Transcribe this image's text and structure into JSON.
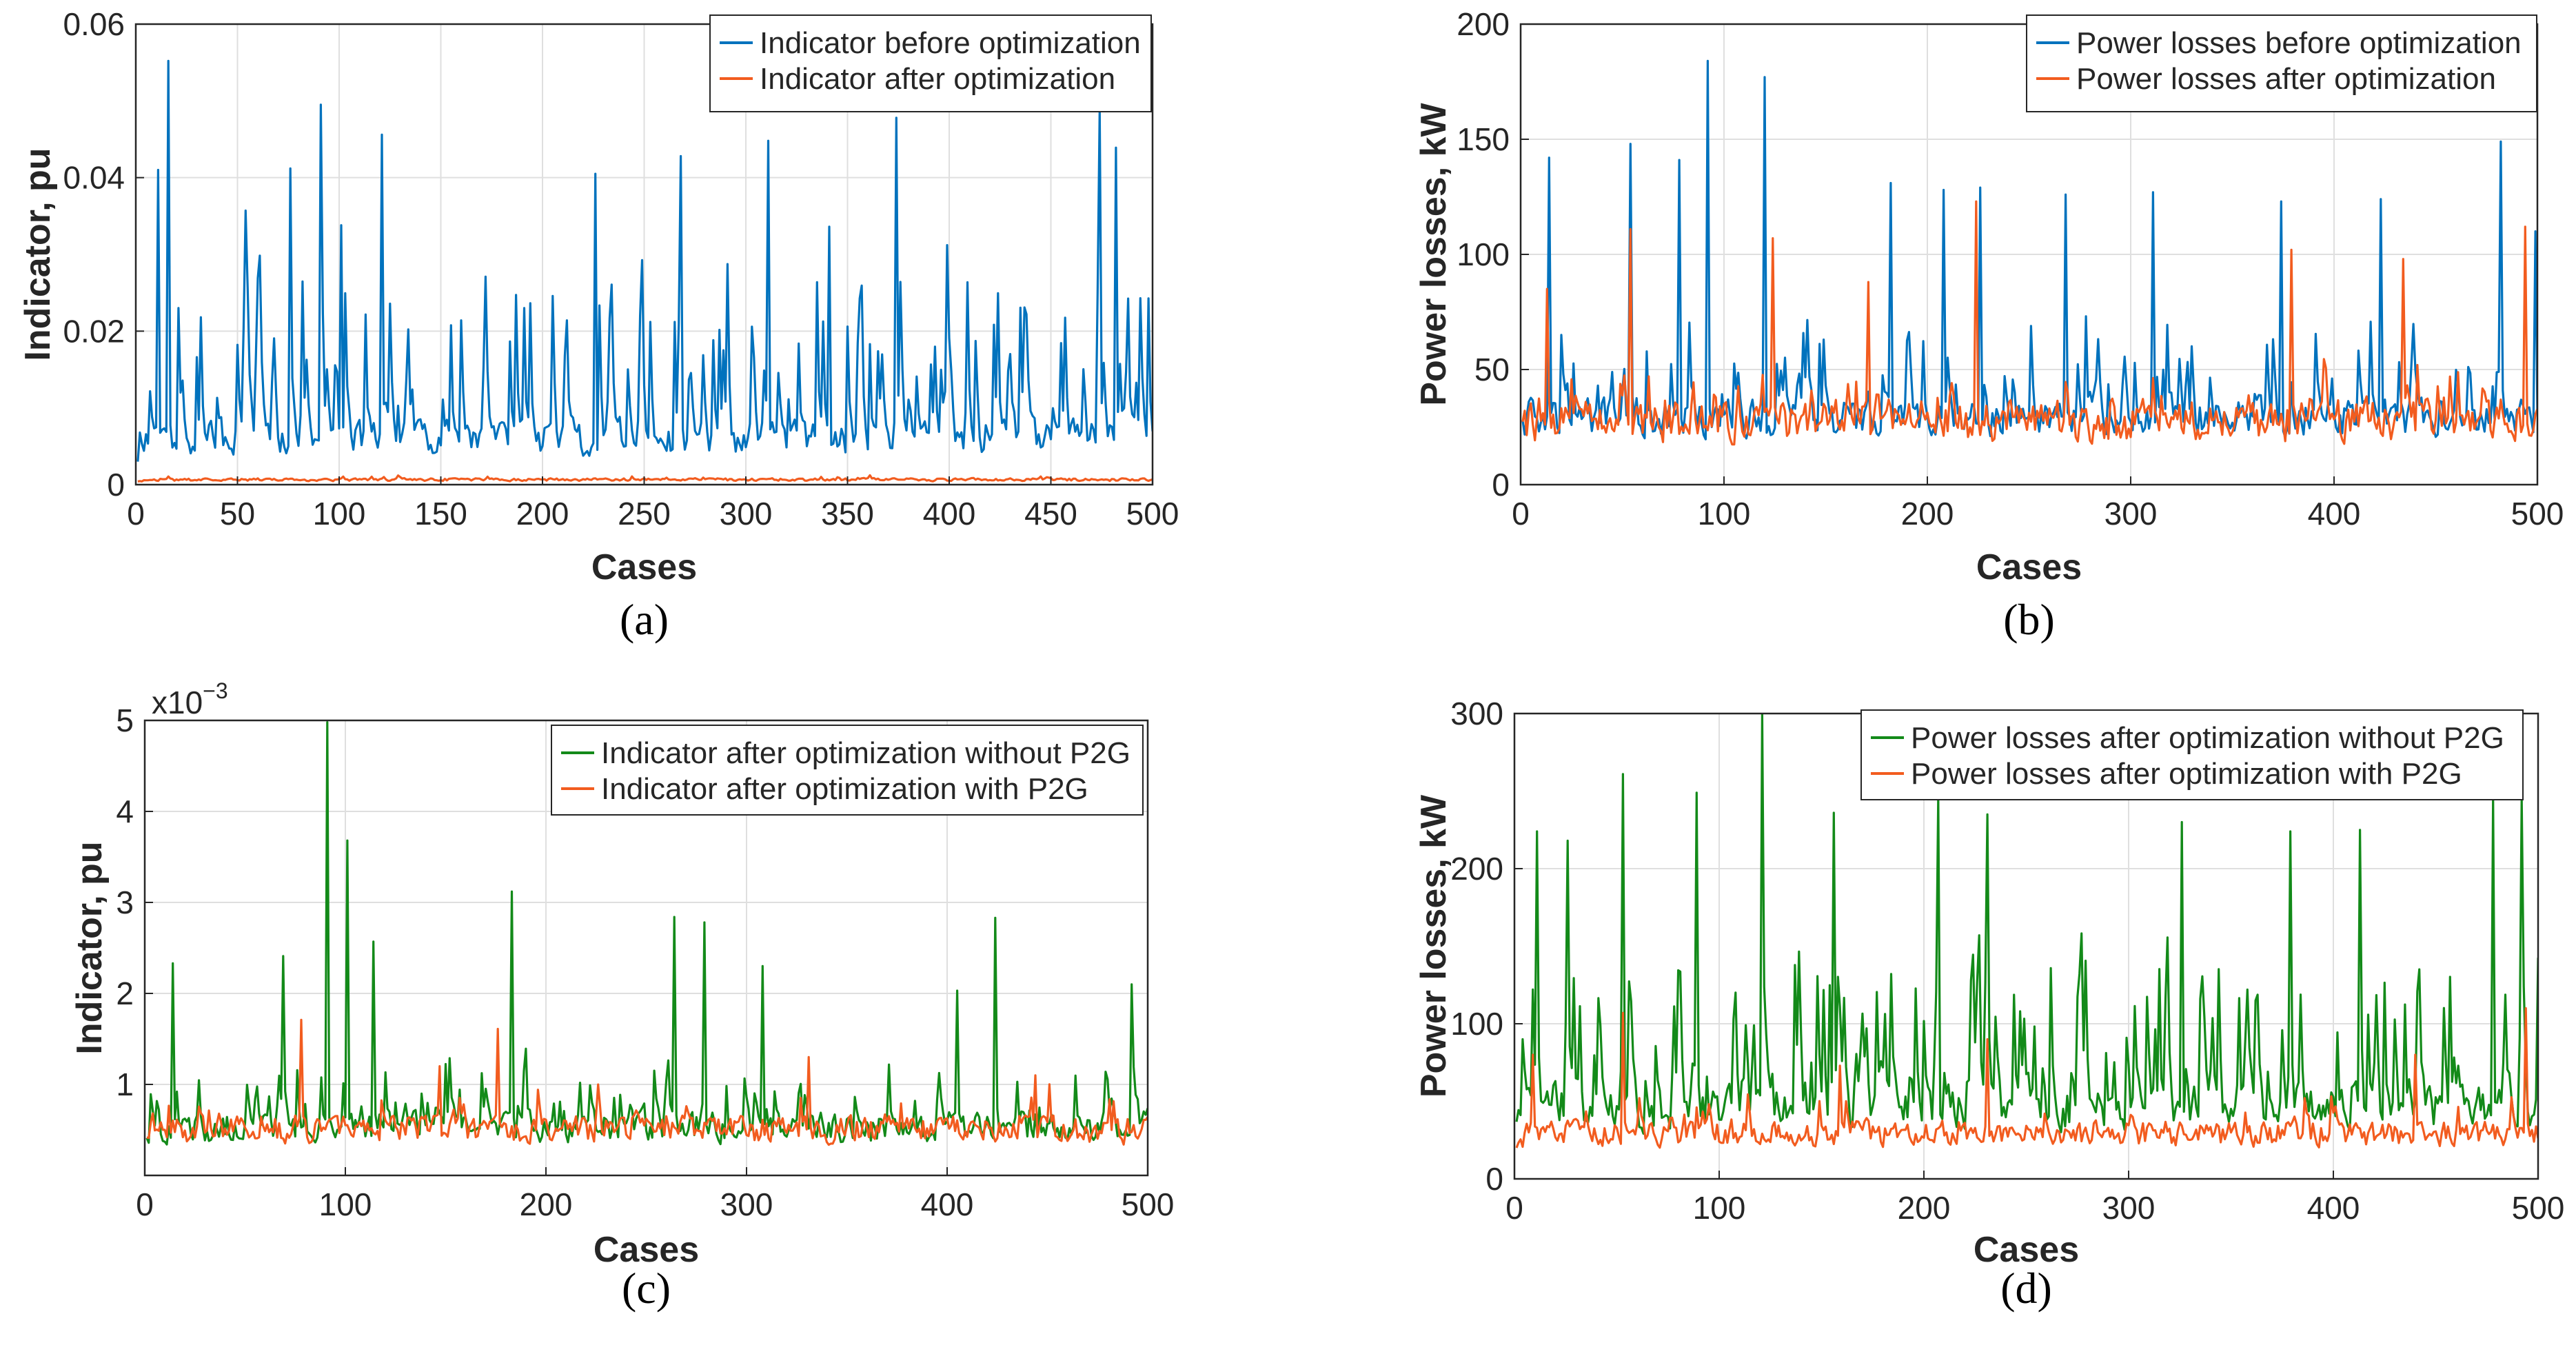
{
  "colors": {
    "blue": "#0072BD",
    "orange": "#F25C1F",
    "green": "#138A19"
  },
  "chart_data": [
    {
      "type": "line",
      "panel_label": "(a)",
      "xlabel": "Cases",
      "ylabel": "Indicator, pu",
      "xlim": [
        0,
        500
      ],
      "ylim": [
        0,
        0.06
      ],
      "xticks": [
        0,
        50,
        100,
        150,
        200,
        250,
        300,
        350,
        400,
        450,
        500
      ],
      "xtick_labels": [
        "0",
        "50",
        "100",
        "150",
        "200",
        "250",
        "300",
        "350",
        "400",
        "450",
        "500"
      ],
      "yticks": [
        0,
        0.02,
        0.04,
        0.06
      ],
      "ytick_labels": [
        "0",
        "0.02",
        "0.04",
        "0.06"
      ],
      "grid": true,
      "legend": "top-right",
      "series": [
        {
          "name": "Indicator before optimization",
          "color": "#0072BD",
          "seed": 11,
          "n": 500,
          "base": 0.003,
          "noise": 0.006,
          "spike_prob": 0.22,
          "spike_max": 0.03,
          "floor": 0.0005,
          "peaks": [
            [
              15,
              0.0552
            ],
            [
              10,
              0.041
            ],
            [
              90,
              0.0495
            ],
            [
              120,
              0.0456
            ],
            [
              53,
              0.0357
            ],
            [
              75,
              0.0412
            ],
            [
              100,
              0.0338
            ],
            [
              225,
              0.0405
            ],
            [
              267,
              0.0428
            ],
            [
              310,
              0.0448
            ],
            [
              373,
              0.0478
            ],
            [
              473,
              0.0488
            ],
            [
              481,
              0.0439
            ],
            [
              340,
              0.0336
            ],
            [
              398,
              0.0312
            ]
          ]
        },
        {
          "name": "Indicator after optimization",
          "color": "#F25C1F",
          "seed": 12,
          "n": 500,
          "base": 0.0004,
          "noise": 0.0005,
          "spike_prob": 0.05,
          "spike_max": 0.0008,
          "floor": 0.0001,
          "peaks": []
        }
      ]
    },
    {
      "type": "line",
      "panel_label": "(b)",
      "xlabel": "Cases",
      "ylabel": "Power losses, kW",
      "xlim": [
        0,
        500
      ],
      "ylim": [
        0,
        200
      ],
      "xticks": [
        0,
        100,
        200,
        300,
        400,
        500
      ],
      "xtick_labels": [
        "0",
        "100",
        "200",
        "300",
        "400",
        "500"
      ],
      "yticks": [
        0,
        50,
        100,
        150,
        200
      ],
      "ytick_labels": [
        "0",
        "50",
        "100",
        "150",
        "200"
      ],
      "grid": true,
      "legend": "top-right",
      "series": [
        {
          "name": "Power losses before optimization",
          "color": "#0072BD",
          "seed": 21,
          "n": 500,
          "base": 18,
          "noise": 22,
          "spike_prob": 0.2,
          "spike_max": 60,
          "floor": 8,
          "peaks": [
            [
              91,
              184
            ],
            [
              119,
              177
            ],
            [
              13,
              142
            ],
            [
              53,
              148
            ],
            [
              481,
              149
            ],
            [
              77,
              141
            ],
            [
              181,
              131
            ],
            [
              207,
              128
            ],
            [
              225,
              129
            ],
            [
              267,
              126
            ],
            [
              310,
              127
            ],
            [
              373,
              123
            ],
            [
              422,
              124
            ],
            [
              498,
              110
            ]
          ]
        },
        {
          "name": "Power losses after optimization",
          "color": "#F25C1F",
          "seed": 22,
          "n": 500,
          "base": 15,
          "noise": 25,
          "spike_prob": 0.12,
          "spike_max": 30,
          "floor": 8,
          "peaks": [
            [
              223,
              123
            ],
            [
              493,
              112
            ],
            [
              53,
              111
            ],
            [
              123,
              107
            ],
            [
              378,
              102
            ],
            [
              433,
              98
            ],
            [
              12,
              85
            ],
            [
              170,
              88
            ]
          ]
        }
      ]
    },
    {
      "type": "line",
      "panel_label": "(c)",
      "xlabel": "Cases",
      "ylabel": "Indicator, pu",
      "multiplier_label": "x10",
      "multiplier_exp": "−3",
      "xlim": [
        0,
        500
      ],
      "ylim": [
        0,
        5
      ],
      "xticks": [
        0,
        100,
        200,
        300,
        400,
        500
      ],
      "xtick_labels": [
        "0",
        "100",
        "200",
        "300",
        "400",
        "500"
      ],
      "yticks": [
        1,
        2,
        3,
        4,
        5
      ],
      "ytick_labels": [
        "1",
        "2",
        "3",
        "4",
        "5"
      ],
      "grid": true,
      "legend": "top-right",
      "series": [
        {
          "name": "Indicator after optimization without P2G",
          "color": "#138A19",
          "seed": 31,
          "n": 500,
          "base": 0.3,
          "noise": 0.45,
          "spike_prob": 0.16,
          "spike_max": 1.0,
          "floor": 0.15,
          "peaks": [
            [
              90,
              4.98
            ],
            [
              100,
              3.68
            ],
            [
              182,
              3.12
            ],
            [
              263,
              2.84
            ],
            [
              278,
              2.78
            ],
            [
              423,
              2.83
            ],
            [
              13,
              2.33
            ],
            [
              68,
              2.41
            ],
            [
              113,
              2.57
            ],
            [
              307,
              2.3
            ],
            [
              491,
              2.1
            ],
            [
              404,
              2.03
            ]
          ]
        },
        {
          "name": "Indicator after optimization with P2G",
          "color": "#F25C1F",
          "seed": 32,
          "n": 500,
          "base": 0.3,
          "noise": 0.4,
          "spike_prob": 0.08,
          "spike_max": 0.6,
          "floor": 0.12,
          "peaks": [
            [
              77,
              1.71
            ],
            [
              175,
              1.61
            ],
            [
              146,
              1.2
            ],
            [
              330,
              1.3
            ],
            [
              443,
              1.1
            ]
          ]
        }
      ]
    },
    {
      "type": "line",
      "panel_label": "(d)",
      "xlabel": "Cases",
      "ylabel": "Power losses, kW",
      "xlim": [
        0,
        500
      ],
      "ylim": [
        0,
        300
      ],
      "xticks": [
        0,
        100,
        200,
        300,
        400,
        500
      ],
      "xtick_labels": [
        "0",
        "100",
        "200",
        "300",
        "400",
        "500"
      ],
      "yticks": [
        0,
        100,
        200,
        300
      ],
      "ytick_labels": [
        "0",
        "100",
        "200",
        "300"
      ],
      "grid": true,
      "legend": "top-right",
      "series": [
        {
          "name": "Power losses after optimization without P2G",
          "color": "#138A19",
          "seed": 41,
          "n": 500,
          "base": 25,
          "noise": 40,
          "spike_prob": 0.3,
          "spike_max": 130,
          "floor": 10,
          "peaks": [
            [
              120,
              300
            ],
            [
              52,
              261
            ],
            [
              88,
              249
            ],
            [
              206,
              246
            ],
            [
              477,
              245
            ],
            [
              491,
              245
            ],
            [
              230,
              235
            ],
            [
              155,
              236
            ],
            [
              325,
              230
            ],
            [
              378,
              224
            ],
            [
              412,
              225
            ],
            [
              25,
              218
            ],
            [
              10,
              224
            ]
          ]
        },
        {
          "name": "Power losses after optimization with P2G",
          "color": "#F25C1F",
          "seed": 42,
          "n": 500,
          "base": 18,
          "noise": 22,
          "spike_prob": 0.1,
          "spike_max": 30,
          "floor": 8,
          "peaks": [
            [
              493,
              110
            ],
            [
              52,
              107
            ],
            [
              230,
              90
            ],
            [
              8,
              80
            ],
            [
              439,
              80
            ],
            [
              158,
              73
            ]
          ]
        }
      ]
    }
  ]
}
